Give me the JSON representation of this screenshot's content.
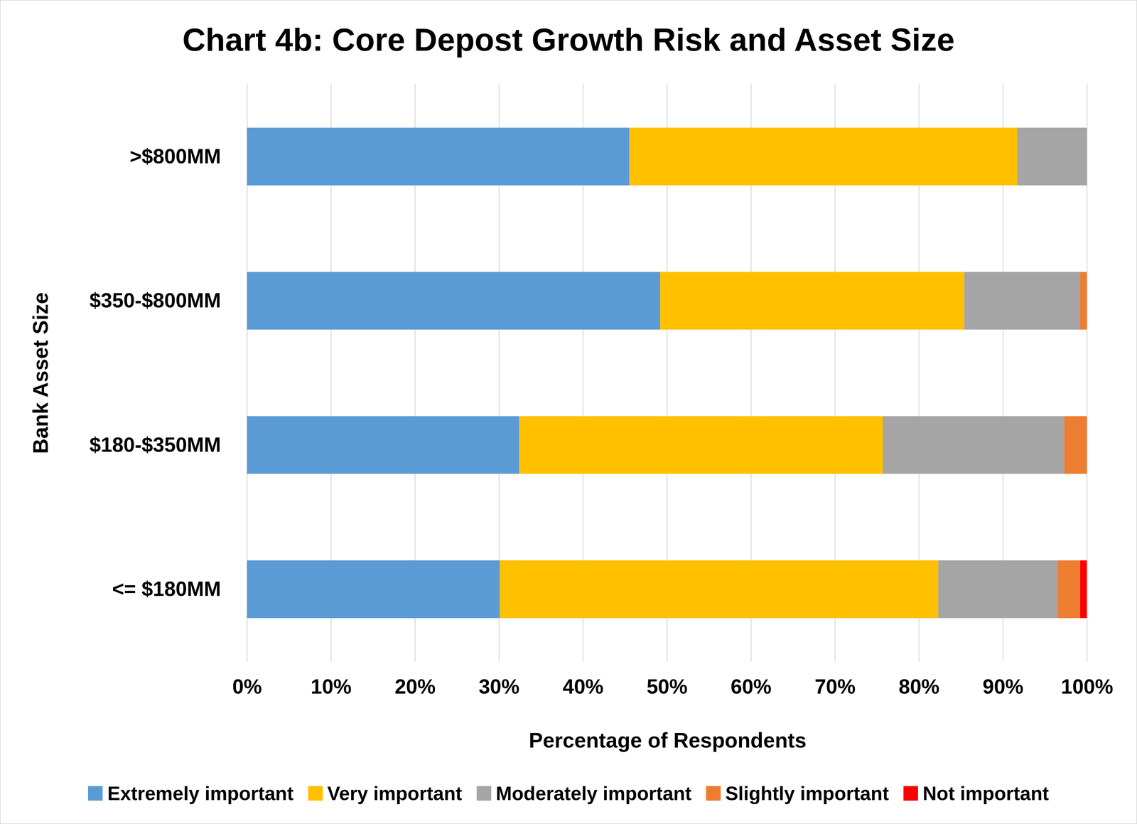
{
  "chart_data": {
    "type": "bar",
    "title": "Chart 4b: Core Depost Growth Risk and Asset Size",
    "orientation": "horizontal",
    "stacked": true,
    "grid": true,
    "legend": "bottom",
    "x_label": "Percentage of Respondents",
    "y_label": "Bank Asset Size",
    "categories": [
      ">$800MM",
      "$350-$800MM",
      "$180-$350MM",
      "<= $180MM"
    ],
    "series": [
      {
        "name": "Extremely important",
        "color": "#5B9BD5",
        "values": [
          45.5,
          49.2,
          32.4,
          30.1
        ]
      },
      {
        "name": "Very important",
        "color": "#FFC000",
        "values": [
          46.2,
          36.2,
          43.3,
          52.2
        ]
      },
      {
        "name": "Moderately important",
        "color": "#A5A5A5",
        "values": [
          8.3,
          13.8,
          21.6,
          14.2
        ]
      },
      {
        "name": "Slightly important",
        "color": "#ED7D31",
        "values": [
          0,
          0.8,
          2.7,
          2.7
        ]
      },
      {
        "name": "Not important",
        "color": "#FF0000",
        "values": [
          0,
          0,
          0,
          0.8
        ]
      }
    ],
    "xlim": [
      0,
      100
    ],
    "xticks": [
      {
        "value": 0,
        "label": "0%"
      },
      {
        "value": 10,
        "label": "10%"
      },
      {
        "value": 20,
        "label": "20%"
      },
      {
        "value": 30,
        "label": "30%"
      },
      {
        "value": 40,
        "label": "40%"
      },
      {
        "value": 50,
        "label": "50%"
      },
      {
        "value": 60,
        "label": "60%"
      },
      {
        "value": 70,
        "label": "70%"
      },
      {
        "value": 80,
        "label": "80%"
      },
      {
        "value": 90,
        "label": "90%"
      },
      {
        "value": 100,
        "label": "100%"
      }
    ]
  }
}
